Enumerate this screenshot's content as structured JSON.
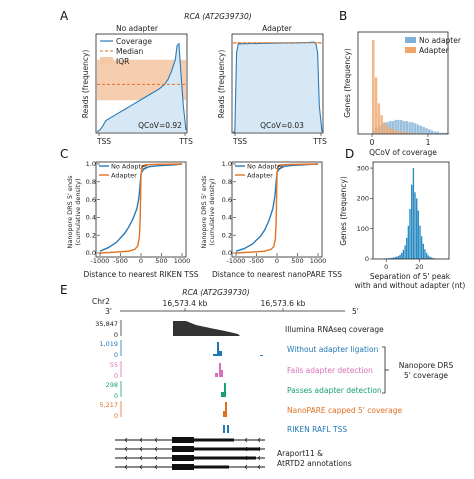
{
  "panels": {
    "A": {
      "letter": "A",
      "gene_title": "RCA (AT2G39730)",
      "ylabel": "Reads (frequency)",
      "left": {
        "title": "No adapter",
        "qcov_label": "QCoV=0.92",
        "x_ticks": [
          "TSS",
          "TTS"
        ],
        "legend": [
          "Coverage",
          "Median",
          "IQR"
        ]
      },
      "right": {
        "title": "Adapter",
        "qcov_label": "QCoV=0.03",
        "x_ticks": [
          "TSS",
          "TTS"
        ]
      }
    },
    "B": {
      "letter": "B",
      "ylabel": "Genes (frequency)",
      "xlabel": "QCoV of coverage",
      "x_ticks": [
        "0",
        "1"
      ],
      "legend": [
        "No adapter",
        "Adapter"
      ]
    },
    "C": {
      "letter": "C",
      "ylabel_line1": "Nanopore DRS 5' ends",
      "ylabel_line2": "(cumulative density)",
      "y_ticks": [
        "0.0",
        "0.2",
        "0.4",
        "0.6",
        "0.8",
        "1.0"
      ],
      "x_ticks": [
        "-1000",
        "-500",
        "0",
        "500",
        "1000"
      ],
      "left_xlabel": "Distance to nearest RIKEN TSS",
      "right_xlabel": "Distance to nearest nanoPARE TSS",
      "legend": [
        "No Adapter",
        "Adapter"
      ]
    },
    "D": {
      "letter": "D",
      "ylabel": "Genes (frequency)",
      "xlabel_line1": "Separation of 5' peak",
      "xlabel_line2": "with and without adapter (nt)",
      "y_ticks": [
        "0",
        "100",
        "200",
        "300"
      ],
      "x_ticks": [
        "0",
        "20"
      ]
    },
    "E": {
      "letter": "E",
      "gene_title": "RCA (AT2G39730)",
      "chrom": "Chr2",
      "coord_left": "16,573.4 kb",
      "coord_right": "16,573.6 kb",
      "strand_left": "3'",
      "strand_right": "5'",
      "tracks": [
        {
          "max": "35,847",
          "zero": "0",
          "label": "Illumina RNAseq coverage",
          "color": "#333333"
        },
        {
          "max": "1,019",
          "zero": "0",
          "label": "Without adapter ligation",
          "color": "#1f77b4"
        },
        {
          "max": "55",
          "zero": "0",
          "label": "Fails adapter detection",
          "color": "#d86fb9"
        },
        {
          "max": "298",
          "zero": "0",
          "label": "Passes adapter detection",
          "color": "#1a9e77"
        },
        {
          "max": "5,217",
          "zero": "0",
          "label": "NanoPARE capped 5' coverage",
          "color": "#e07020"
        },
        {
          "max": "",
          "zero": "",
          "label": "RIKEN RAFL TSS",
          "color": "#1f77b4"
        }
      ],
      "bracket_label_line1": "Nanopore DRS",
      "bracket_label_line2": "5' coverage",
      "annot_line1": "Araport11 &",
      "annot_line2": "AtRTD2 annotations"
    }
  },
  "colors": {
    "blue": "#2a7ab8",
    "light_blue": "#d6e8f5",
    "orange": "#e37222",
    "orange_fill": "#f5c9a6",
    "hist_blue": "#7fb0d6",
    "hist_orange": "#f0a66b",
    "hist_d": "#2b8cc4"
  },
  "chart_data": [
    {
      "type": "area",
      "panel": "A-left",
      "title": "No adapter",
      "ylabel": "Reads (frequency)",
      "x_ticks": [
        "TSS",
        "TTS"
      ],
      "series": [
        {
          "name": "Coverage",
          "x": [
            0,
            0.03,
            0.06,
            0.1,
            0.2,
            0.3,
            0.4,
            0.5,
            0.6,
            0.7,
            0.76,
            0.8,
            0.84,
            0.88,
            0.9,
            0.92,
            0.94,
            0.97,
            1.0
          ],
          "y": [
            5,
            20,
            60,
            130,
            190,
            250,
            310,
            370,
            430,
            490,
            540,
            600,
            700,
            820,
            980,
            1000,
            700,
            300,
            20
          ]
        },
        {
          "name": "Median",
          "value": 540
        },
        {
          "name": "IQR",
          "range": [
            360,
            820
          ]
        }
      ],
      "qcov": 0.92
    },
    {
      "type": "area",
      "panel": "A-right",
      "title": "Adapter",
      "ylabel": "Reads (frequency)",
      "x_ticks": [
        "TSS",
        "TTS"
      ],
      "series": [
        {
          "name": "Coverage",
          "x": [
            0,
            0.02,
            0.04,
            0.06,
            0.1,
            0.3,
            0.5,
            0.7,
            0.85,
            0.9,
            0.93,
            0.95,
            0.97,
            1.0
          ],
          "y": [
            0,
            0,
            900,
            1000,
            1000,
            1005,
            1008,
            1010,
            1015,
            1020,
            1010,
            900,
            300,
            0
          ]
        },
        {
          "name": "Median",
          "value": 1010
        },
        {
          "name": "IQR",
          "range": [
            1000,
            1020
          ]
        }
      ],
      "qcov": 0.03
    },
    {
      "type": "bar",
      "panel": "B",
      "xlabel": "QCoV of coverage",
      "ylabel": "Genes (frequency)",
      "bin_start": 0,
      "bin_width": 0.05,
      "series": [
        {
          "name": "No adapter",
          "values": [
            3,
            5,
            6,
            8,
            9,
            10,
            11,
            11,
            12,
            12,
            12,
            11,
            11,
            10,
            10,
            9,
            8,
            7,
            6,
            5,
            4,
            3,
            2,
            2,
            1,
            1,
            1,
            0.5
          ]
        },
        {
          "name": "Adapter",
          "values": [
            80,
            48,
            26,
            16,
            10,
            7,
            5,
            4,
            3,
            2.5,
            2,
            1.6,
            1.2,
            1,
            0.8,
            0.6,
            0.5,
            0.4,
            0.3,
            0.2,
            0.2,
            0.1,
            0.1,
            0.1,
            0,
            0,
            0,
            0
          ]
        }
      ]
    },
    {
      "type": "line",
      "panel": "C-left",
      "xlabel": "Distance to nearest RIKEN TSS",
      "ylabel": "Nanopore DRS 5' ends (cumulative density)",
      "xlim": [
        -1000,
        1000
      ],
      "ylim": [
        0,
        1
      ],
      "series": [
        {
          "name": "No Adapter",
          "x": [
            -1000,
            -800,
            -600,
            -400,
            -300,
            -200,
            -100,
            -50,
            -20,
            0,
            20,
            50,
            100,
            200,
            400,
            600,
            800,
            1000
          ],
          "y": [
            0.02,
            0.06,
            0.12,
            0.22,
            0.29,
            0.38,
            0.5,
            0.62,
            0.78,
            0.88,
            0.91,
            0.93,
            0.95,
            0.97,
            0.98,
            0.985,
            0.99,
            1.0
          ]
        },
        {
          "name": "Adapter",
          "x": [
            -1000,
            -600,
            -300,
            -150,
            -80,
            -40,
            -20,
            0,
            20,
            50,
            100,
            300,
            1000
          ],
          "y": [
            0.0,
            0.01,
            0.02,
            0.04,
            0.08,
            0.18,
            0.4,
            0.87,
            0.95,
            0.98,
            0.99,
            0.995,
            1.0
          ]
        }
      ]
    },
    {
      "type": "line",
      "panel": "C-right",
      "xlabel": "Distance to nearest nanoPARE TSS",
      "ylabel": "Nanopore DRS 5' ends (cumulative density)",
      "xlim": [
        -1000,
        1000
      ],
      "ylim": [
        0,
        1
      ],
      "series": [
        {
          "name": "No Adapter",
          "x": [
            -1000,
            -800,
            -600,
            -400,
            -300,
            -200,
            -100,
            -50,
            -20,
            0,
            20,
            50,
            100,
            200,
            400,
            600,
            800,
            1000
          ],
          "y": [
            0.02,
            0.05,
            0.1,
            0.19,
            0.26,
            0.36,
            0.5,
            0.64,
            0.8,
            0.9,
            0.92,
            0.94,
            0.96,
            0.975,
            0.985,
            0.99,
            0.995,
            1.0
          ]
        },
        {
          "name": "Adapter",
          "x": [
            -1000,
            -600,
            -300,
            -150,
            -80,
            -40,
            -20,
            0,
            20,
            50,
            100,
            300,
            1000
          ],
          "y": [
            0.0,
            0.01,
            0.02,
            0.04,
            0.07,
            0.16,
            0.38,
            0.88,
            0.96,
            0.985,
            0.99,
            0.995,
            1.0
          ]
        }
      ]
    },
    {
      "type": "bar",
      "panel": "D",
      "xlabel": "Separation of 5' peak with and without adapter (nt)",
      "ylabel": "Genes (frequency)",
      "xlim": [
        -8,
        38
      ],
      "ylim": [
        0,
        320
      ],
      "bin_start": -1,
      "bin_width": 1,
      "values": [
        2,
        2,
        3,
        3,
        4,
        5,
        6,
        8,
        10,
        14,
        20,
        30,
        45,
        70,
        110,
        165,
        245,
        300,
        220,
        200,
        160,
        110,
        75,
        50,
        32,
        20,
        12,
        8,
        5,
        3,
        2,
        1,
        1
      ]
    }
  ]
}
